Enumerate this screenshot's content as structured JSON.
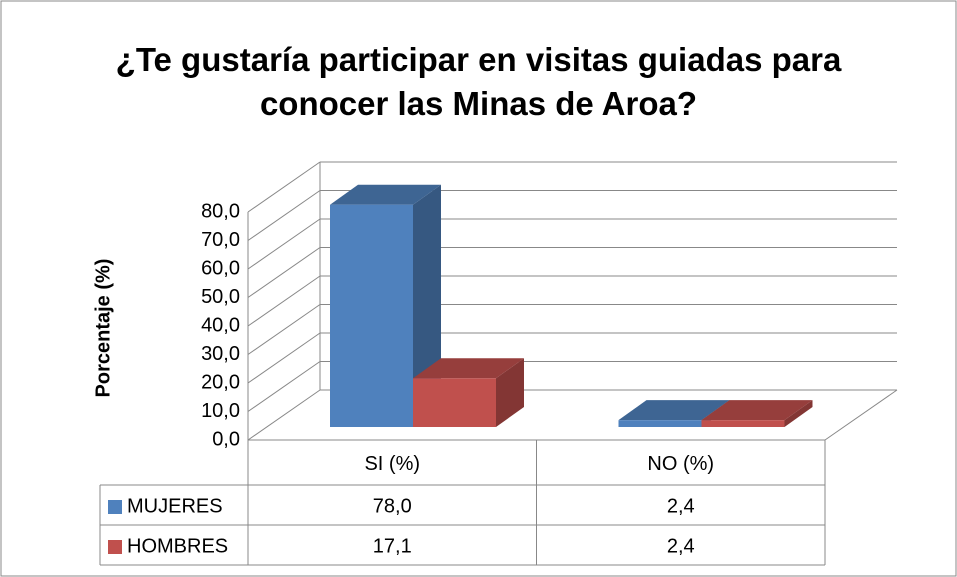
{
  "chart_data": {
    "type": "bar3d",
    "title": "¿Te gustaría participar en visitas guiadas para conocer las Minas de Aroa?",
    "y_label": "Porcentaje (%)",
    "categories": [
      "SI (%)",
      "NO (%)"
    ],
    "series": [
      {
        "name": "MUJERES",
        "color": "#4f81bd",
        "values": [
          78.0,
          2.4
        ],
        "value_labels": [
          "78,0",
          "2,4"
        ]
      },
      {
        "name": "HOMBRES",
        "color": "#c0504d",
        "values": [
          17.1,
          2.4
        ],
        "value_labels": [
          "17,1",
          "2,4"
        ]
      }
    ],
    "ylim": [
      0,
      80
    ],
    "yticks": [
      {
        "value": 0,
        "label": "0,0"
      },
      {
        "value": 10,
        "label": "10,0"
      },
      {
        "value": 20,
        "label": "20,0"
      },
      {
        "value": 30,
        "label": "30,0"
      },
      {
        "value": 40,
        "label": "40,0"
      },
      {
        "value": 50,
        "label": "50,0"
      },
      {
        "value": 60,
        "label": "60,0"
      },
      {
        "value": 70,
        "label": "70,0"
      },
      {
        "value": 80,
        "label": "80,0"
      }
    ],
    "grid": true,
    "data_table": true
  }
}
